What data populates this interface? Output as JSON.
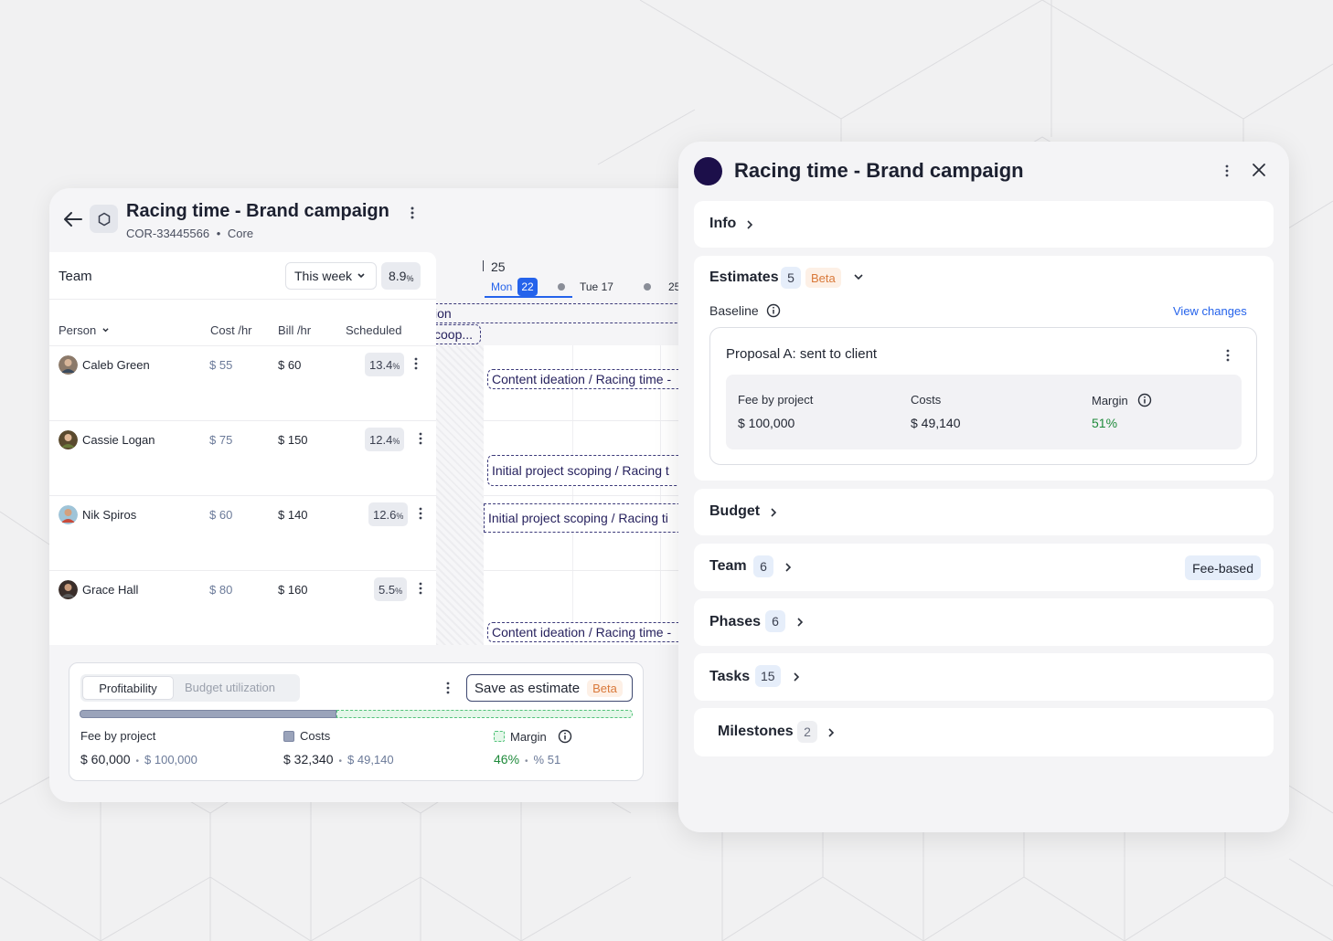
{
  "left": {
    "title": "Racing time - Brand campaign",
    "code": "COR-33445566",
    "dot": "•",
    "tag": "Core",
    "team_label": "Team",
    "week_select": "This week",
    "utilization": "8.9",
    "utilization_unit": "%",
    "columns": {
      "person": "Person",
      "cost": "Cost /hr",
      "bill": "Bill /hr",
      "scheduled": "Scheduled"
    },
    "people": [
      {
        "name": "Caleb Green",
        "cost": "$ 55",
        "bill": "$ 60",
        "scheduled": "13.4",
        "unit": "%"
      },
      {
        "name": "Cassie Logan",
        "cost": "$ 75",
        "bill": "$ 150",
        "scheduled": "12.4",
        "unit": "%"
      },
      {
        "name": "Nik Spiros",
        "cost": "$ 60",
        "bill": "$ 140",
        "scheduled": "12.6",
        "unit": "%"
      },
      {
        "name": "Grace Hall",
        "cost": "$ 80",
        "bill": "$ 160",
        "scheduled": "5.5",
        "unit": "%"
      }
    ],
    "timeline": {
      "week_num": "25",
      "mon": "Mon",
      "mon_date": "22",
      "tue": "Tue 17",
      "next": "25",
      "bars": [
        "ion",
        "coop...",
        "Content ideation / Racing time -",
        "Initial project scoping / Racing t",
        "Initial project scoping / Racing ti",
        "Content ideation / Racing time -"
      ]
    },
    "profit": {
      "tab_active": "Profitability",
      "tab_inactive": "Budget utilization",
      "save_label": "Save as estimate",
      "beta": "Beta",
      "fee_label": "Fee by project",
      "fee_value": "$ 60,000",
      "fee_alt": "$ 100,000",
      "costs_label": "Costs",
      "costs_value": "$ 32,340",
      "costs_alt": "$ 49,140",
      "margin_label": "Margin",
      "margin_value": "46%",
      "margin_alt": "% 51",
      "sep": "•",
      "costs_fraction": 0.465
    }
  },
  "right": {
    "title": "Racing time - Brand campaign",
    "info": "Info",
    "estimates": "Estimates",
    "estimates_count": "5",
    "beta": "Beta",
    "baseline": "Baseline",
    "view_changes": "View changes",
    "proposal_title": "Proposal A: sent to client",
    "fee_label": "Fee by project",
    "fee_value": "$ 100,000",
    "costs_label": "Costs",
    "costs_value": "$ 49,140",
    "margin_label": "Margin",
    "margin_value": "51%",
    "budget": "Budget",
    "team": "Team",
    "team_count": "6",
    "fee_based": "Fee-based",
    "phases": "Phases",
    "phases_count": "6",
    "tasks": "Tasks",
    "tasks_count": "15",
    "milestones": "Milestones",
    "milestones_count": "2"
  },
  "colors": {
    "accent": "#2563eb",
    "margin_green": "#1f8a3b",
    "brand_dot": "#1c0f4a",
    "beta_orange": "#d9793a"
  }
}
